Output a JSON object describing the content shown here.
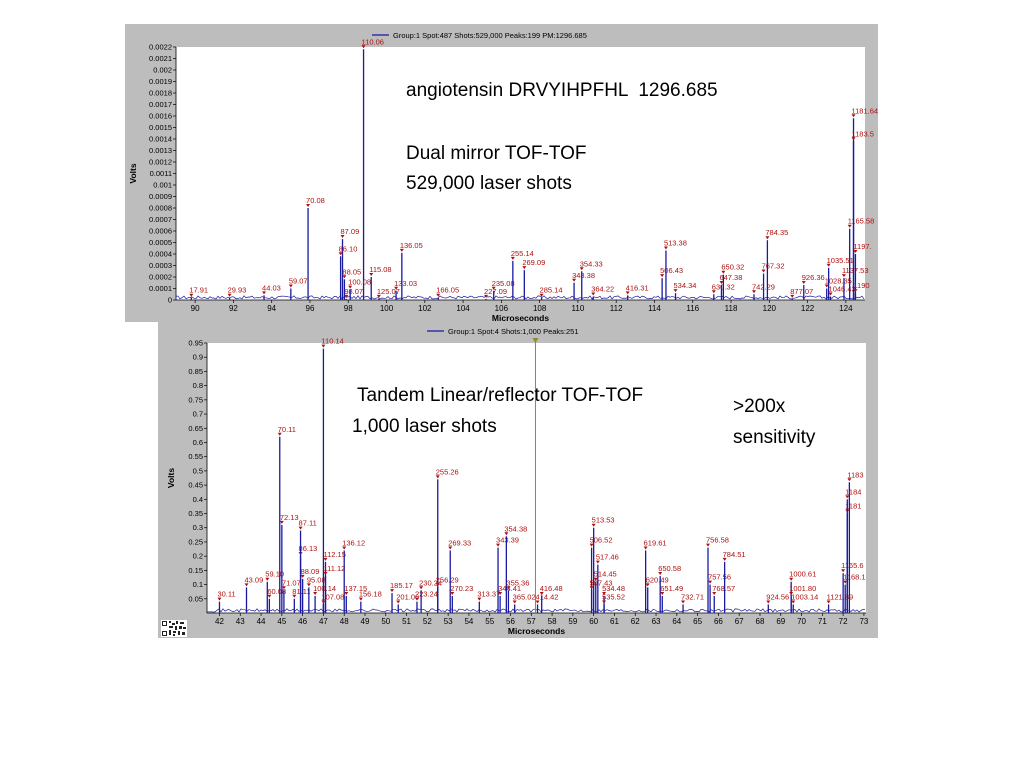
{
  "slide": {
    "title": "angiotensin DRVYIHPFHL  1296.685",
    "top_note_line1": "Dual mirror TOF-TOF",
    "top_note_line2": "529,000 laser shots",
    "bottom_note_line1": "Tandem Linear/reflector TOF-TOF",
    "bottom_note_line2": "1,000 laser shots",
    "side_note_line1": ">200x",
    "side_note_line2": "sensitivity"
  },
  "colors": {
    "panel_bg": "#bdbdbd",
    "plot_bg": "#ffffff",
    "trace": "#1a1aa0",
    "peak_label": "#b01010",
    "cursor": "#8b8b2b"
  },
  "chart_data": [
    {
      "type": "line",
      "legend": "Group:1 Spot:487 Shots:529,000 Peaks:199 PM:1296.685",
      "xlabel": "Microseconds",
      "ylabel": "Volts",
      "xlim": [
        89,
        125
      ],
      "ylim": [
        0,
        0.0022
      ],
      "xticks": [
        90,
        92,
        94,
        96,
        98,
        100,
        102,
        104,
        106,
        108,
        110,
        112,
        114,
        116,
        118,
        120,
        122,
        124
      ],
      "yticks": [
        "0",
        "0.0001",
        "0.0002",
        "0.0003",
        "0.0004",
        "0.0005",
        "0.0006",
        "0.0007",
        "0.0008",
        "0.0009",
        "0.001",
        "0.0011",
        "0.0012",
        "0.0013",
        "0.0014",
        "0.0015",
        "0.0016",
        "0.0017",
        "0.0018",
        "0.0019",
        "0.002",
        "0.0021",
        "0.0022"
      ],
      "peaks": [
        {
          "label": "17.91",
          "x": 89.8,
          "y": 2e-05
        },
        {
          "label": "29.93",
          "x": 91.8,
          "y": 2e-05
        },
        {
          "label": "44.03",
          "x": 93.6,
          "y": 4e-05
        },
        {
          "label": "59.07",
          "x": 95.0,
          "y": 0.0001
        },
        {
          "label": "70.08",
          "x": 95.9,
          "y": 0.0008
        },
        {
          "label": "87.09",
          "x": 97.7,
          "y": 0.00053
        },
        {
          "label": "86.10",
          "x": 97.6,
          "y": 0.00038
        },
        {
          "label": "88.05",
          "x": 97.8,
          "y": 0.00018
        },
        {
          "label": "110.06",
          "x": 98.8,
          "y": 0.00218
        },
        {
          "label": "115.08",
          "x": 99.2,
          "y": 0.0002
        },
        {
          "label": "100.08",
          "x": 98.1,
          "y": 9e-05
        },
        {
          "label": "98.07",
          "x": 97.9,
          "y": 1e-05
        },
        {
          "label": "125.07",
          "x": 99.6,
          "y": 1e-05
        },
        {
          "label": "136.05",
          "x": 100.8,
          "y": 0.00041
        },
        {
          "label": "133.03",
          "x": 100.5,
          "y": 8e-05
        },
        {
          "label": "166.05",
          "x": 102.7,
          "y": 2e-05
        },
        {
          "label": "227.09",
          "x": 105.2,
          "y": 1e-05
        },
        {
          "label": "235.08",
          "x": 105.6,
          "y": 8e-05
        },
        {
          "label": "255.14",
          "x": 106.6,
          "y": 0.00034
        },
        {
          "label": "269.09",
          "x": 107.2,
          "y": 0.00026
        },
        {
          "label": "285.14",
          "x": 108.1,
          "y": 2e-05
        },
        {
          "label": "343.38",
          "x": 109.8,
          "y": 0.00015
        },
        {
          "label": "354.33",
          "x": 110.2,
          "y": 0.00025
        },
        {
          "label": "364.22",
          "x": 110.8,
          "y": 3e-05
        },
        {
          "label": "416.31",
          "x": 112.6,
          "y": 4e-05
        },
        {
          "label": "506.43",
          "x": 114.4,
          "y": 0.00019
        },
        {
          "label": "513.38",
          "x": 114.6,
          "y": 0.00043
        },
        {
          "label": "534.34",
          "x": 115.1,
          "y": 6e-05
        },
        {
          "label": "630.32",
          "x": 117.1,
          "y": 5e-05
        },
        {
          "label": "647.38",
          "x": 117.5,
          "y": 0.00013
        },
        {
          "label": "650.32",
          "x": 117.6,
          "y": 0.00022
        },
        {
          "label": "742.29",
          "x": 119.2,
          "y": 5e-05
        },
        {
          "label": "767.32",
          "x": 119.7,
          "y": 0.00023
        },
        {
          "label": "784.35",
          "x": 119.9,
          "y": 0.00052
        },
        {
          "label": "877.07",
          "x": 121.2,
          "y": 1e-05
        },
        {
          "label": "926.36",
          "x": 121.8,
          "y": 0.00013
        },
        {
          "label": "1028.35",
          "x": 123.0,
          "y": 0.0001
        },
        {
          "label": "1035.51",
          "x": 123.1,
          "y": 0.00028
        },
        {
          "label": "1046.43",
          "x": 123.2,
          "y": 3e-05
        },
        {
          "label": "1137.53",
          "x": 123.9,
          "y": 0.00019
        },
        {
          "label": "1165.58",
          "x": 124.2,
          "y": 0.00062
        },
        {
          "label": "1181.64",
          "x": 124.4,
          "y": 0.00158
        },
        {
          "label": "1183.5",
          "x": 124.4,
          "y": 0.00138
        },
        {
          "label": "1197.",
          "x": 124.5,
          "y": 0.0004
        },
        {
          "label": "1190",
          "x": 124.5,
          "y": 6e-05
        }
      ]
    },
    {
      "type": "line",
      "legend": "Group:1 Spot:4 Shots:1,000 Peaks:251",
      "xlabel": "Microseconds",
      "ylabel": "Volts",
      "xlim": [
        41.4,
        73.1
      ],
      "ylim": [
        0,
        0.95
      ],
      "xticks": [
        42,
        43,
        44,
        45,
        46,
        47,
        48,
        49,
        50,
        51,
        52,
        53,
        54,
        55,
        56,
        57,
        58,
        59,
        60,
        61,
        62,
        63,
        64,
        65,
        66,
        67,
        68,
        69,
        70,
        71,
        72,
        73
      ],
      "yticks": [
        "0.05",
        "0.1",
        "0.15",
        "0.2",
        "0.25",
        "0.3",
        "0.35",
        "0.4",
        "0.45",
        "0.5",
        "0.55",
        "0.6",
        "0.65",
        "0.7",
        "0.75",
        "0.8",
        "0.85",
        "0.9",
        "0.95"
      ],
      "cursor_x": 57.2,
      "peaks": [
        {
          "label": "30.11",
          "x": 42.0,
          "y": 0.04
        },
        {
          "label": "43.09",
          "x": 43.3,
          "y": 0.09
        },
        {
          "label": "59.10",
          "x": 44.3,
          "y": 0.11
        },
        {
          "label": "60.08",
          "x": 44.4,
          "y": 0.05
        },
        {
          "label": "70.11",
          "x": 44.9,
          "y": 0.62
        },
        {
          "label": "72.13",
          "x": 45.0,
          "y": 0.31
        },
        {
          "label": "71.07",
          "x": 45.1,
          "y": 0.08
        },
        {
          "label": "81.11",
          "x": 45.6,
          "y": 0.05
        },
        {
          "label": "86.13",
          "x": 45.9,
          "y": 0.2
        },
        {
          "label": "87.11",
          "x": 45.9,
          "y": 0.29
        },
        {
          "label": "88.09",
          "x": 46.0,
          "y": 0.12
        },
        {
          "label": "95.08",
          "x": 46.3,
          "y": 0.09
        },
        {
          "label": "100.14",
          "x": 46.6,
          "y": 0.06
        },
        {
          "label": "110.14",
          "x": 47.0,
          "y": 0.93
        },
        {
          "label": "112.15",
          "x": 47.1,
          "y": 0.18
        },
        {
          "label": "111.12",
          "x": 47.1,
          "y": 0.13
        },
        {
          "label": "107.08",
          "x": 47.0,
          "y": 0.03
        },
        {
          "label": "136.12",
          "x": 48.0,
          "y": 0.22
        },
        {
          "label": "137.15",
          "x": 48.1,
          "y": 0.06
        },
        {
          "label": "156.18",
          "x": 48.8,
          "y": 0.04
        },
        {
          "label": "185.17",
          "x": 50.3,
          "y": 0.07
        },
        {
          "label": "201.06",
          "x": 50.6,
          "y": 0.03
        },
        {
          "label": "223.24",
          "x": 51.5,
          "y": 0.04
        },
        {
          "label": "230.24",
          "x": 51.7,
          "y": 0.08
        },
        {
          "label": "255.26",
          "x": 52.5,
          "y": 0.47
        },
        {
          "label": "256.29",
          "x": 52.5,
          "y": 0.09
        },
        {
          "label": "269.33",
          "x": 53.1,
          "y": 0.22
        },
        {
          "label": "270.23",
          "x": 53.2,
          "y": 0.06
        },
        {
          "label": "313.37",
          "x": 54.5,
          "y": 0.04
        },
        {
          "label": "343.39",
          "x": 55.4,
          "y": 0.23
        },
        {
          "label": "344.41",
          "x": 55.5,
          "y": 0.06
        },
        {
          "label": "354.38",
          "x": 55.8,
          "y": 0.27
        },
        {
          "label": "355.36",
          "x": 55.9,
          "y": 0.08
        },
        {
          "label": "365.02",
          "x": 56.2,
          "y": 0.03
        },
        {
          "label": "414.42",
          "x": 57.3,
          "y": 0.03
        },
        {
          "label": "416.48",
          "x": 57.5,
          "y": 0.06
        },
        {
          "label": "506.52",
          "x": 59.9,
          "y": 0.23
        },
        {
          "label": "513.53",
          "x": 60.0,
          "y": 0.3
        },
        {
          "label": "507.43",
          "x": 59.9,
          "y": 0.08
        },
        {
          "label": "514.45",
          "x": 60.1,
          "y": 0.11
        },
        {
          "label": "517.46",
          "x": 60.2,
          "y": 0.17
        },
        {
          "label": "534.48",
          "x": 60.5,
          "y": 0.06
        },
        {
          "label": "535.52",
          "x": 60.5,
          "y": 0.03
        },
        {
          "label": "619.61",
          "x": 62.5,
          "y": 0.22
        },
        {
          "label": "620.49",
          "x": 62.6,
          "y": 0.09
        },
        {
          "label": "650.58",
          "x": 63.2,
          "y": 0.13
        },
        {
          "label": "651.49",
          "x": 63.3,
          "y": 0.06
        },
        {
          "label": "732.71",
          "x": 64.3,
          "y": 0.03
        },
        {
          "label": "756.58",
          "x": 65.5,
          "y": 0.23
        },
        {
          "label": "757.56",
          "x": 65.6,
          "y": 0.1
        },
        {
          "label": "768.57",
          "x": 65.8,
          "y": 0.06
        },
        {
          "label": "784.51",
          "x": 66.3,
          "y": 0.18
        },
        {
          "label": "924.56",
          "x": 68.4,
          "y": 0.03
        },
        {
          "label": "1000.61",
          "x": 69.5,
          "y": 0.11
        },
        {
          "label": "1001.80",
          "x": 69.5,
          "y": 0.06
        },
        {
          "label": "1003.14",
          "x": 69.6,
          "y": 0.03
        },
        {
          "label": "1121.89",
          "x": 71.3,
          "y": 0.03
        },
        {
          "label": "1165.6",
          "x": 72.0,
          "y": 0.14
        },
        {
          "label": "1168.1",
          "x": 72.1,
          "y": 0.1
        },
        {
          "label": "1181",
          "x": 72.2,
          "y": 0.35
        },
        {
          "label": "1184",
          "x": 72.2,
          "y": 0.4
        },
        {
          "label": "1183",
          "x": 72.3,
          "y": 0.46
        }
      ]
    }
  ]
}
